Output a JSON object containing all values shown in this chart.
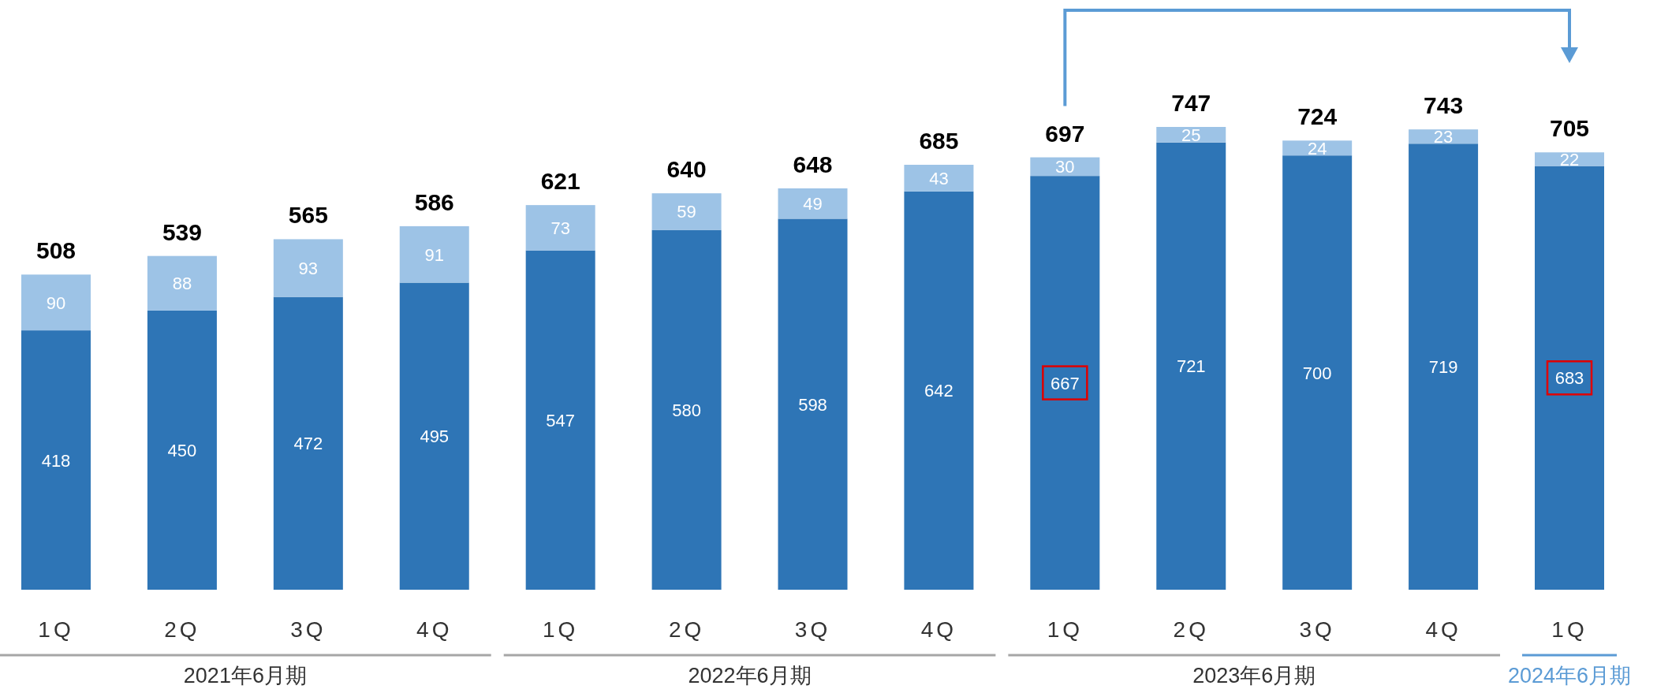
{
  "chart_data": {
    "type": "bar",
    "stacked": true,
    "data_labels": true,
    "categories": [
      "1Q",
      "2Q",
      "3Q",
      "4Q",
      "1Q",
      "2Q",
      "3Q",
      "4Q",
      "1Q",
      "2Q",
      "3Q",
      "4Q",
      "1Q"
    ],
    "series": [
      {
        "color": "#2e75b6",
        "values": [
          418,
          450,
          472,
          495,
          547,
          580,
          598,
          642,
          667,
          721,
          700,
          719,
          683
        ]
      },
      {
        "color": "#9dc3e6",
        "values": [
          90,
          88,
          93,
          91,
          73,
          59,
          49,
          43,
          30,
          25,
          24,
          23,
          22
        ]
      }
    ],
    "totals": [
      "508",
      "539",
      "565",
      "586",
      "621",
      "640",
      "648",
      "685",
      "697",
      "747",
      "724",
      "743",
      "705"
    ],
    "annotations": [
      "2021年6月期",
      "2022年6月期",
      "2023年6月期",
      "2024年6月期"
    ]
  }
}
